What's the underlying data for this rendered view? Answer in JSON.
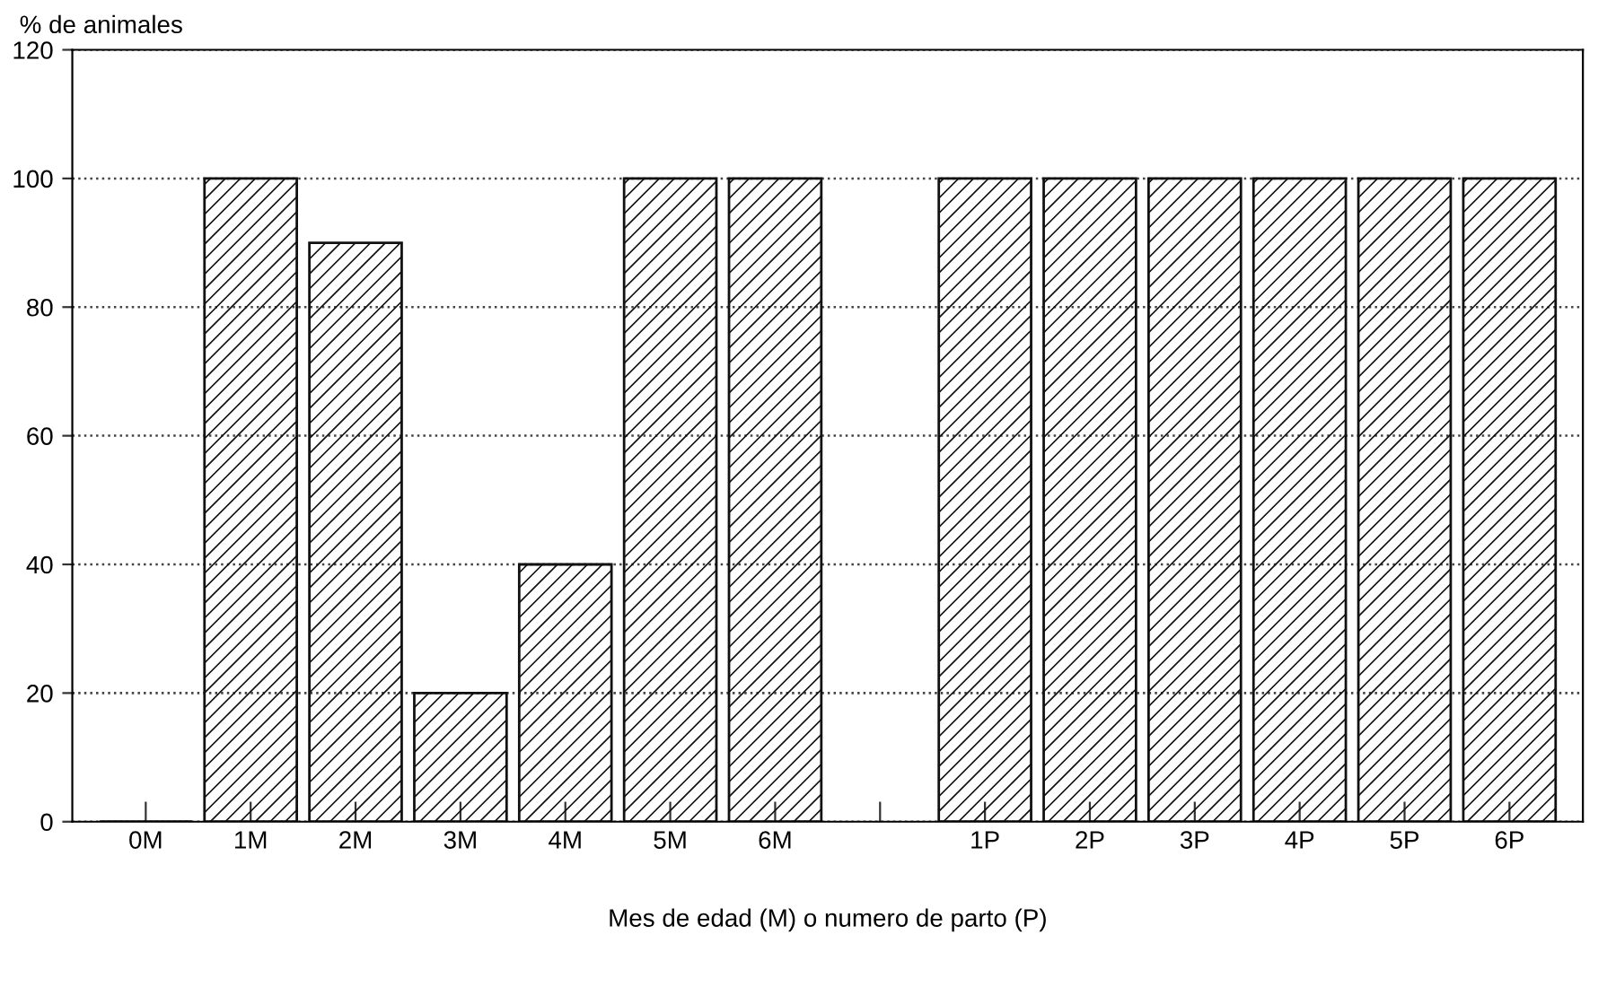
{
  "chart_data": {
    "type": "bar",
    "ylabel": "% de animales",
    "xlabel": "Mes de edad (M) o numero de parto (P)",
    "categories": [
      "0M",
      "1M",
      "2M",
      "3M",
      "4M",
      "5M",
      "6M",
      null,
      "1P",
      "2P",
      "3P",
      "4P",
      "5P",
      "6P"
    ],
    "values": [
      0,
      100,
      90,
      20,
      40,
      100,
      100,
      null,
      100,
      100,
      100,
      100,
      100,
      100
    ],
    "color": "#111111",
    "ylim": [
      0,
      120
    ],
    "yticks": [
      0,
      20,
      40,
      60,
      80,
      100,
      120
    ],
    "grid": "y"
  }
}
